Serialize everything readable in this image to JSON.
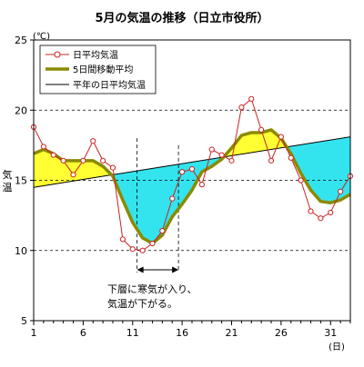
{
  "chart_data": {
    "type": "line",
    "title": "5月の気温の推移（日立市役所）",
    "ylabel_unit": "(℃)",
    "ylabel_chars": [
      "気",
      "温"
    ],
    "xlabel_unit": "(日)",
    "ylim": [
      5,
      25
    ],
    "yticks": [
      5,
      10,
      15,
      20,
      25
    ],
    "xlim": [
      1,
      33
    ],
    "xticks": [
      1,
      6,
      11,
      16,
      21,
      26,
      31
    ],
    "grid": "dashed-horizontal",
    "legend": {
      "position": "top-left",
      "items": [
        "日平均気温",
        "5日間移動平均",
        "平年の日平均気温"
      ]
    },
    "series": [
      {
        "name": "日平均気温",
        "color": "#cc2222",
        "x": [
          1,
          2,
          3,
          4,
          5,
          6,
          7,
          8,
          9,
          10,
          11,
          12,
          13,
          14,
          15,
          16,
          17,
          18,
          19,
          20,
          21,
          22,
          23,
          24,
          25,
          26,
          27,
          28,
          29,
          30,
          31,
          32,
          33
        ],
        "values": [
          18.8,
          17.4,
          16.8,
          16.4,
          15.4,
          16.4,
          17.8,
          16.4,
          15.9,
          10.8,
          10.1,
          10.0,
          10.5,
          11.4,
          13.7,
          15.6,
          15.8,
          14.7,
          17.2,
          16.8,
          16.4,
          20.2,
          20.8,
          18.6,
          16.4,
          18.1,
          16.6,
          15.0,
          12.8,
          12.3,
          12.7,
          14.2,
          15.3
        ]
      },
      {
        "name": "5日間移動平均",
        "color": "#8a8a00",
        "x": [
          1,
          2,
          3,
          4,
          5,
          6,
          7,
          8,
          9,
          10,
          11,
          12,
          13,
          14,
          15,
          16,
          17,
          18,
          19,
          20,
          21,
          22,
          23,
          24,
          25,
          26,
          27,
          28,
          29,
          30,
          31,
          32,
          33
        ],
        "values": [
          16.9,
          17.2,
          16.9,
          16.4,
          16.4,
          16.4,
          16.4,
          16.0,
          15.3,
          13.6,
          12.0,
          10.9,
          10.5,
          11.1,
          12.4,
          13.3,
          14.3,
          15.6,
          16.0,
          16.5,
          17.3,
          18.2,
          18.4,
          18.4,
          18.6,
          18.0,
          16.9,
          15.5,
          14.3,
          13.5,
          13.4,
          13.6,
          14.0
        ]
      },
      {
        "name": "平年の日平均気温",
        "color": "#000000",
        "x": [
          1,
          33
        ],
        "values": [
          14.5,
          18.1
        ]
      }
    ],
    "fill_above_normal_color": "#ffff33",
    "fill_below_normal_color": "#33e4ee",
    "annotation": {
      "x_range": [
        12,
        16
      ],
      "lines": [
        "下層に寒気が入り、",
        "気温が下がる。"
      ]
    }
  }
}
